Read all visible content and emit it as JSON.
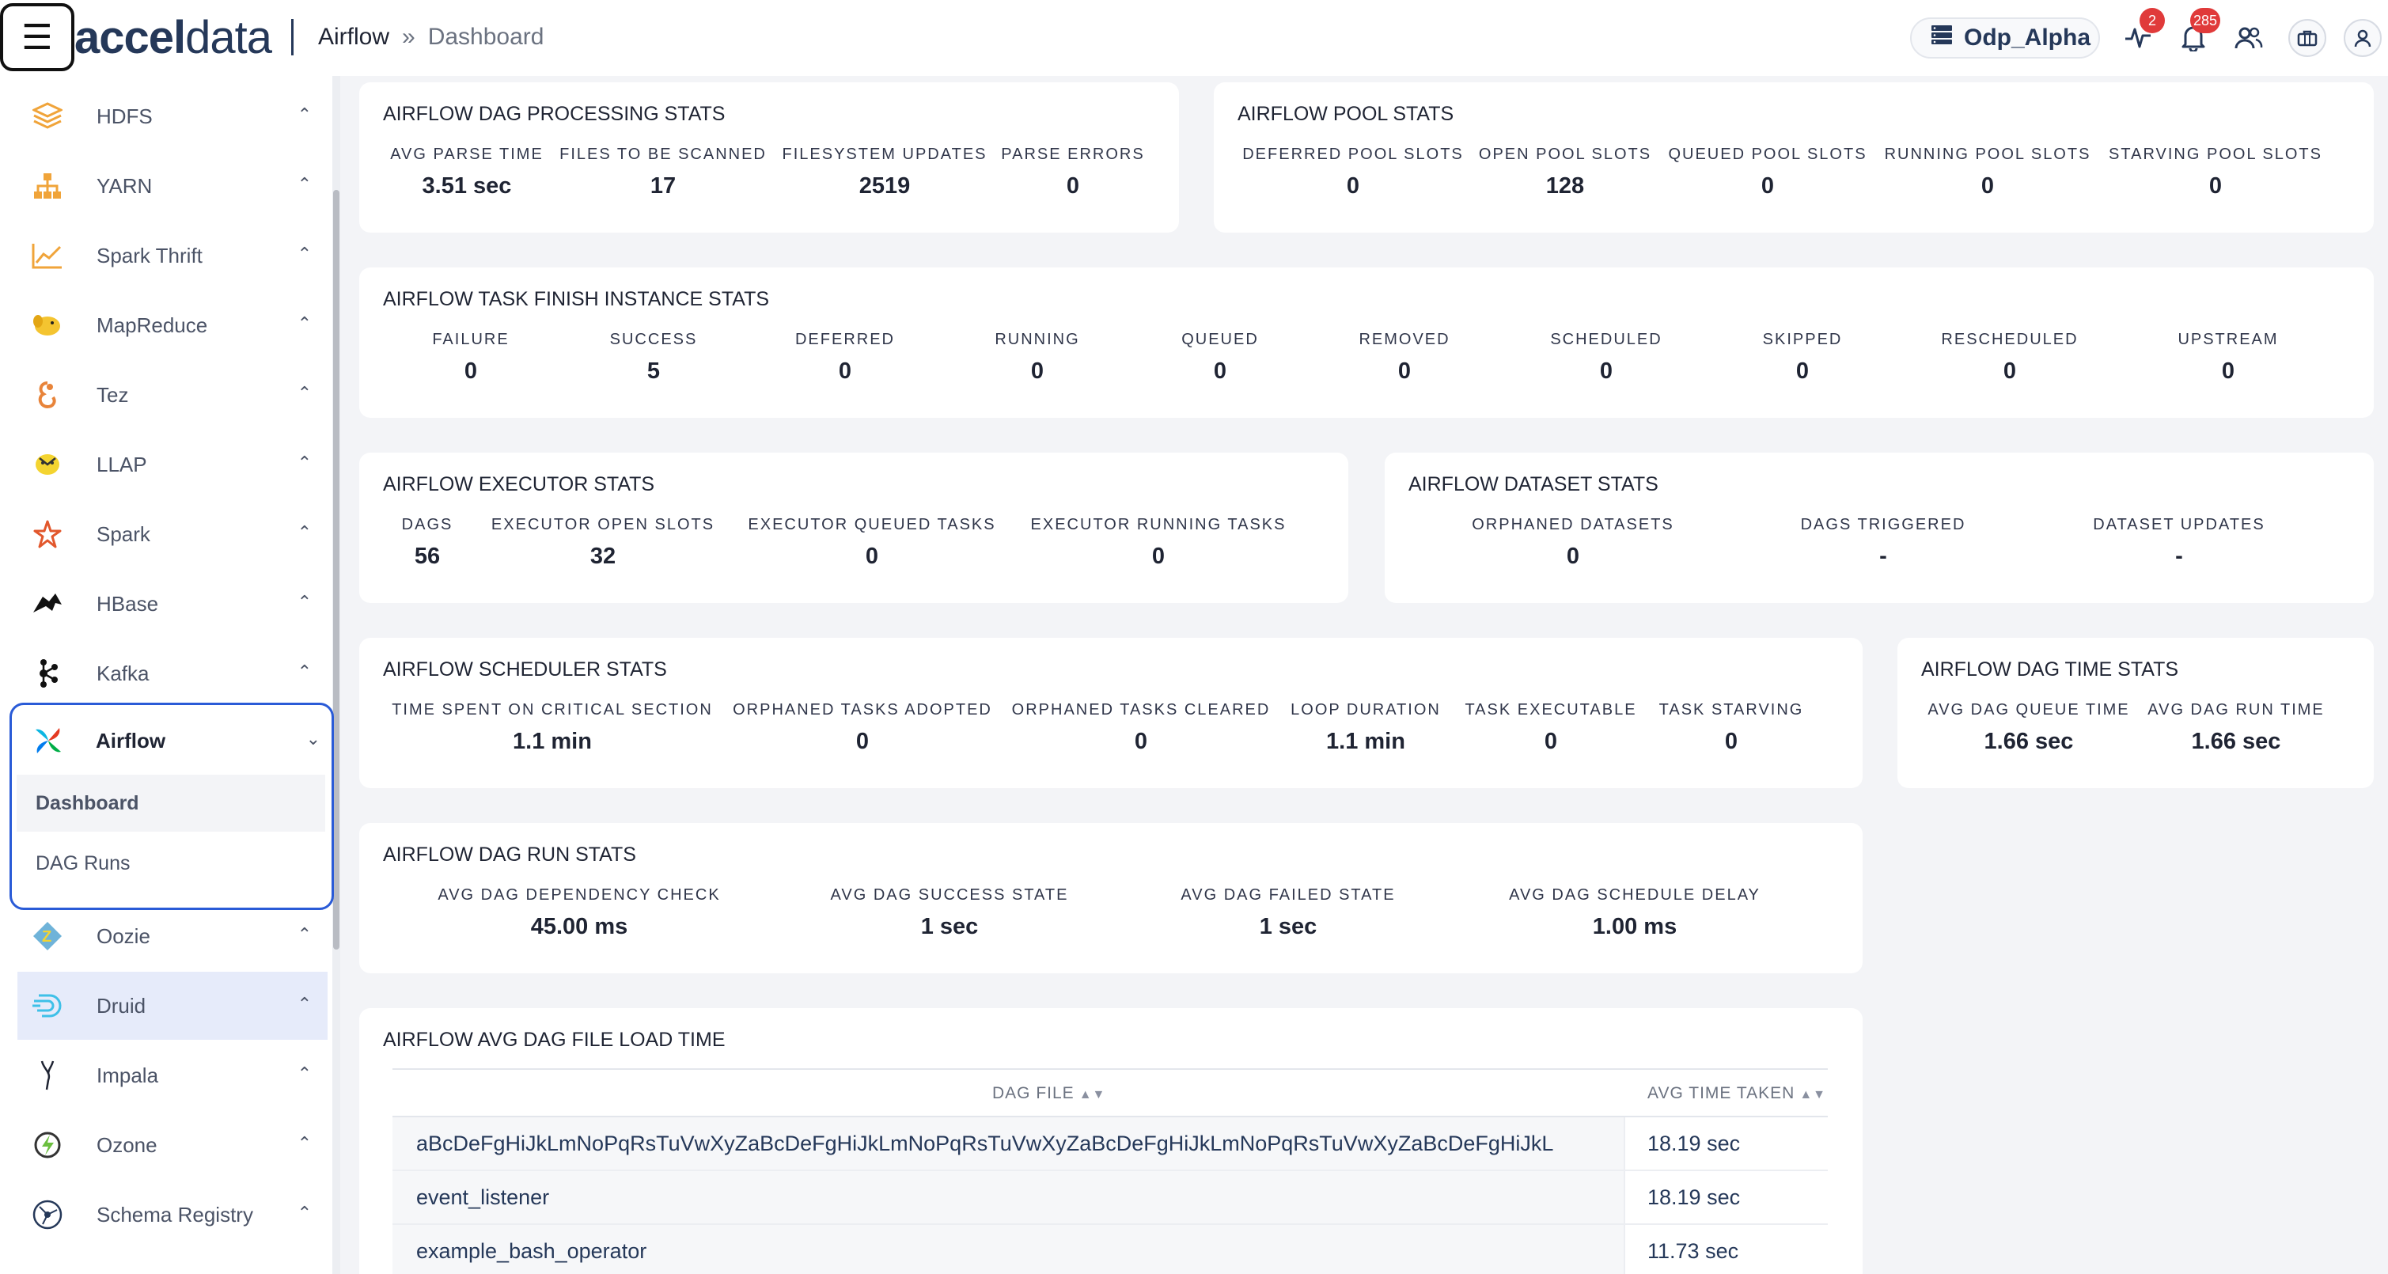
{
  "header": {
    "logo_text_bold": "accel",
    "logo_text_light": "data",
    "breadcrumb_current": "Airflow",
    "breadcrumb_separator": "»",
    "breadcrumb_sub": "Dashboard",
    "cluster_name": "Odp_Alpha",
    "pulse_badge": "2",
    "bell_badge": "285",
    "icons": [
      "menu-icon",
      "server-icon",
      "pulse-icon",
      "bell-icon",
      "users-icon",
      "briefcase-icon",
      "user-icon"
    ]
  },
  "sidebar": {
    "items": [
      {
        "label": "HDFS",
        "icon": "hdfs-icon"
      },
      {
        "label": "YARN",
        "icon": "yarn-icon"
      },
      {
        "label": "Spark Thrift",
        "icon": "spark-thrift-icon"
      },
      {
        "label": "MapReduce",
        "icon": "mapreduce-icon"
      },
      {
        "label": "Tez",
        "icon": "tez-icon"
      },
      {
        "label": "LLAP",
        "icon": "llap-icon"
      },
      {
        "label": "Spark",
        "icon": "spark-icon"
      },
      {
        "label": "HBase",
        "icon": "hbase-icon"
      },
      {
        "label": "Kafka",
        "icon": "kafka-icon"
      },
      {
        "label": "Airflow",
        "icon": "airflow-icon"
      },
      {
        "label": "Oozie",
        "icon": "oozie-icon"
      },
      {
        "label": "Druid",
        "icon": "druid-icon"
      },
      {
        "label": "Impala",
        "icon": "impala-icon"
      },
      {
        "label": "Ozone",
        "icon": "ozone-icon"
      },
      {
        "label": "Schema Registry",
        "icon": "schema-registry-icon"
      }
    ],
    "airflow_sub": [
      "Dashboard",
      "DAG Runs"
    ]
  },
  "dag_processing": {
    "title": "AIRFLOW DAG PROCESSING STATS",
    "stats": [
      {
        "label": "AVG PARSE TIME",
        "value": "3.51 sec"
      },
      {
        "label": "FILES TO BE SCANNED",
        "value": "17"
      },
      {
        "label": "FILESYSTEM UPDATES",
        "value": "2519"
      },
      {
        "label": "PARSE ERRORS",
        "value": "0"
      }
    ]
  },
  "pool": {
    "title": "AIRFLOW POOL STATS",
    "stats": [
      {
        "label": "DEFERRED POOL SLOTS",
        "value": "0"
      },
      {
        "label": "OPEN POOL SLOTS",
        "value": "128"
      },
      {
        "label": "QUEUED POOL SLOTS",
        "value": "0"
      },
      {
        "label": "RUNNING POOL SLOTS",
        "value": "0"
      },
      {
        "label": "STARVING POOL SLOTS",
        "value": "0"
      }
    ]
  },
  "task_finish": {
    "title": "AIRFLOW TASK FINISH INSTANCE STATS",
    "stats": [
      {
        "label": "FAILURE",
        "value": "0"
      },
      {
        "label": "SUCCESS",
        "value": "5"
      },
      {
        "label": "DEFERRED",
        "value": "0"
      },
      {
        "label": "RUNNING",
        "value": "0"
      },
      {
        "label": "QUEUED",
        "value": "0"
      },
      {
        "label": "REMOVED",
        "value": "0"
      },
      {
        "label": "SCHEDULED",
        "value": "0"
      },
      {
        "label": "SKIPPED",
        "value": "0"
      },
      {
        "label": "RESCHEDULED",
        "value": "0"
      },
      {
        "label": "UPSTREAM",
        "value": "0"
      }
    ]
  },
  "executor": {
    "title": "AIRFLOW EXECUTOR STATS",
    "stats": [
      {
        "label": "DAGS",
        "value": "56"
      },
      {
        "label": "EXECUTOR OPEN SLOTS",
        "value": "32"
      },
      {
        "label": "EXECUTOR QUEUED TASKS",
        "value": "0"
      },
      {
        "label": "EXECUTOR RUNNING TASKS",
        "value": "0"
      }
    ]
  },
  "dataset": {
    "title": "AIRFLOW DATASET STATS",
    "stats": [
      {
        "label": "ORPHANED DATASETS",
        "value": "0"
      },
      {
        "label": "DAGS TRIGGERED",
        "value": "-"
      },
      {
        "label": "DATASET UPDATES",
        "value": "-"
      }
    ]
  },
  "scheduler": {
    "title": "AIRFLOW SCHEDULER STATS",
    "stats": [
      {
        "label": "TIME SPENT ON CRITICAL SECTION",
        "value": "1.1 min"
      },
      {
        "label": "ORPHANED TASKS ADOPTED",
        "value": "0"
      },
      {
        "label": "ORPHANED TASKS CLEARED",
        "value": "0"
      },
      {
        "label": "LOOP DURATION",
        "value": "1.1 min"
      },
      {
        "label": "TASK EXECUTABLE",
        "value": "0"
      },
      {
        "label": "TASK STARVING",
        "value": "0"
      }
    ]
  },
  "dag_time": {
    "title": "AIRFLOW DAG TIME STATS",
    "stats": [
      {
        "label": "AVG DAG QUEUE TIME",
        "value": "1.66 sec"
      },
      {
        "label": "AVG DAG RUN TIME",
        "value": "1.66 sec"
      }
    ]
  },
  "dag_run": {
    "title": "AIRFLOW DAG RUN STATS",
    "stats": [
      {
        "label": "AVG DAG DEPENDENCY CHECK",
        "value": "45.00 ms"
      },
      {
        "label": "AVG DAG SUCCESS STATE",
        "value": "1 sec"
      },
      {
        "label": "AVG DAG FAILED STATE",
        "value": "1 sec"
      },
      {
        "label": "AVG DAG SCHEDULE DELAY",
        "value": "1.00 ms"
      }
    ]
  },
  "file_load": {
    "title": "AIRFLOW AVG DAG FILE LOAD TIME",
    "columns": [
      "DAG FILE",
      "AVG TIME TAKEN"
    ],
    "rows": [
      {
        "file": "aBcDeFgHiJkLmNoPqRsTuVwXyZaBcDeFgHiJkLmNoPqRsTuVwXyZaBcDeFgHiJkLmNoPqRsTuVwXyZaBcDeFgHiJkL",
        "time": "18.19 sec"
      },
      {
        "file": "event_listener",
        "time": "18.19 sec"
      },
      {
        "file": "example_bash_operator",
        "time": "11.73 sec"
      }
    ]
  },
  "colors": {
    "accent": "#2a5bd7",
    "badge": "#e03a3a",
    "text": "#1f2433",
    "background": "#f3f4f7"
  }
}
